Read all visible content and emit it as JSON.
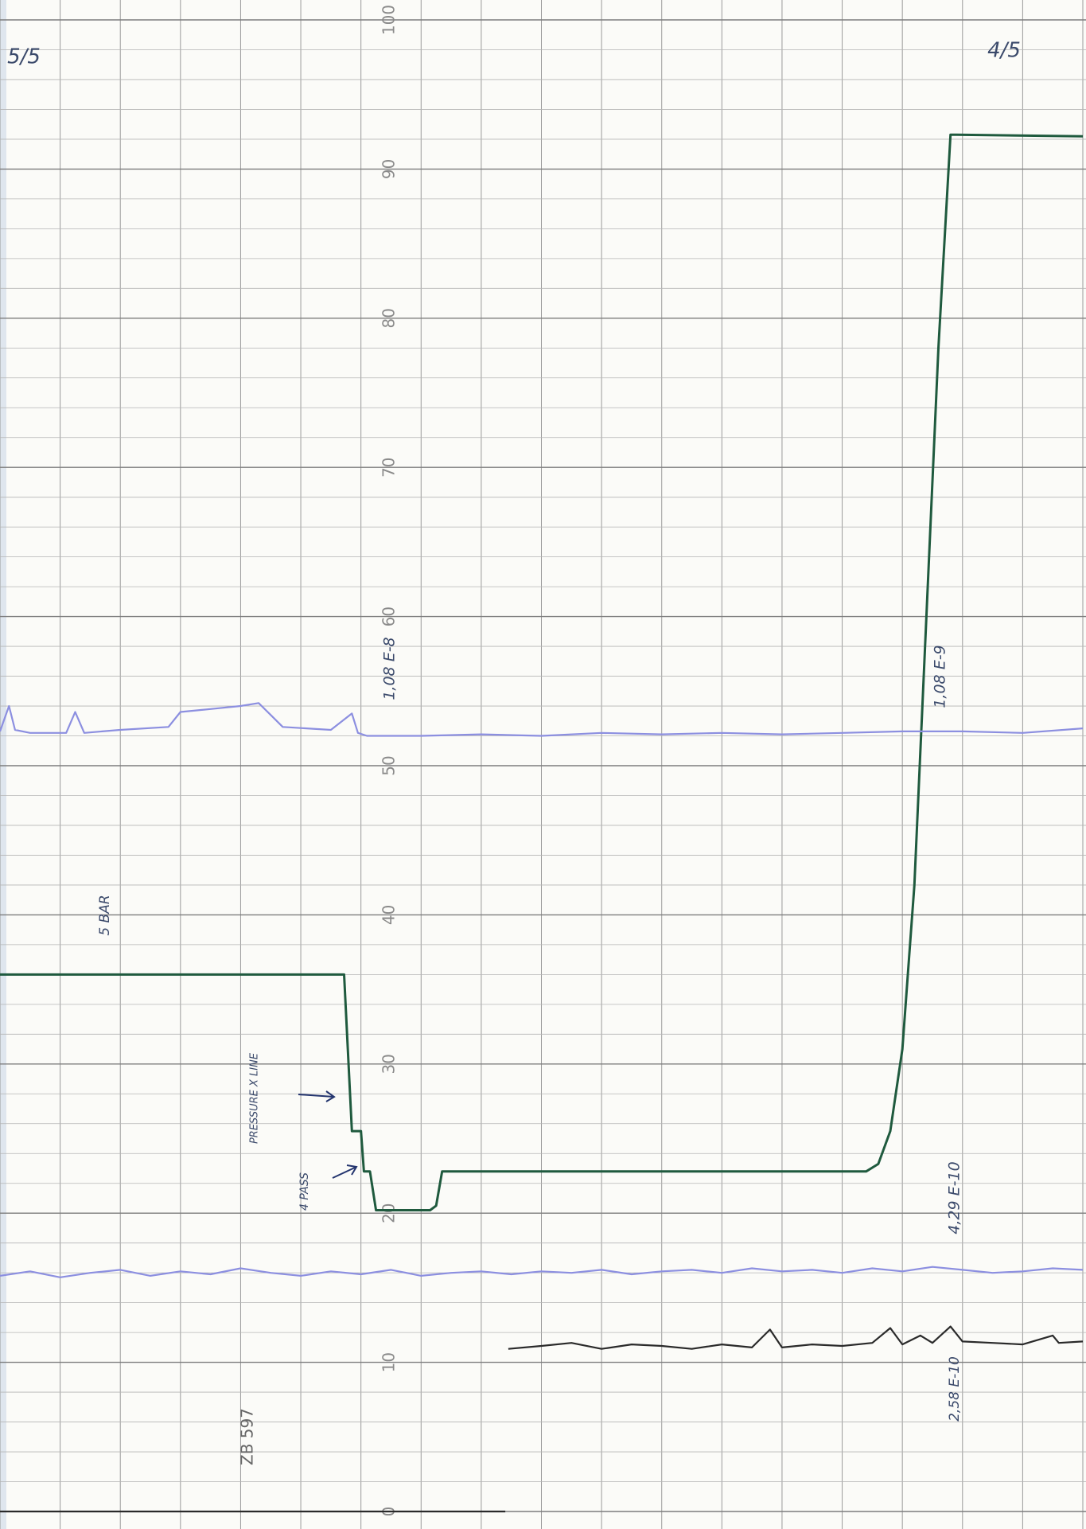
{
  "chart_data": {
    "type": "line",
    "xlim": [
      0,
      18
    ],
    "ylim": [
      0,
      100
    ],
    "yticks": [
      0,
      10,
      20,
      30,
      40,
      50,
      60,
      70,
      80,
      90,
      100
    ],
    "grid": true,
    "annotations": [
      "5/5",
      "4/5",
      "5 BAR",
      "1,08 E-8",
      "1,08 E-9",
      "PRESSURE X LINE",
      "4 PASS",
      "4,29 E-10",
      "2,58 E-10",
      "ZB 597"
    ],
    "series": [
      {
        "color": "#1f5a3e",
        "x": [
          0,
          5.72,
          5.85,
          5.88,
          6.0,
          6.05,
          6.15,
          6.25,
          7.15,
          7.25,
          7.35,
          14.4,
          14.6,
          14.8,
          15.0,
          15.2,
          15.4,
          15.6,
          15.8,
          15.9,
          18
        ],
        "values": [
          36,
          36,
          25.5,
          25.5,
          25.5,
          22.8,
          22.8,
          20.2,
          20.2,
          20.5,
          22.8,
          22.8,
          23.3,
          25.5,
          31,
          42,
          60,
          78,
          92.3,
          92.3,
          92.2
        ]
      },
      {
        "color": "#8c8fe0",
        "x": [
          0,
          0.15,
          0.25,
          0.5,
          1.1,
          1.25,
          1.4,
          2.0,
          2.8,
          3.0,
          3.5,
          4.0,
          4.3,
          4.5,
          4.7,
          5.5,
          5.85,
          5.95,
          6.1,
          7,
          8,
          9,
          10,
          11,
          12,
          13,
          14,
          15,
          16,
          17,
          18
        ],
        "values": [
          52.3,
          54,
          52.4,
          52.2,
          52.2,
          53.6,
          52.2,
          52.4,
          52.6,
          53.6,
          53.8,
          54,
          54.2,
          53.4,
          52.6,
          52.4,
          53.5,
          52.2,
          52.0,
          52.0,
          52.1,
          52.0,
          52.2,
          52.1,
          52.2,
          52.1,
          52.2,
          52.3,
          52.3,
          52.2,
          52.5
        ]
      },
      {
        "color": "#8c8fe0",
        "x": [
          0,
          0.5,
          1,
          1.5,
          2,
          2.5,
          3,
          3.5,
          4,
          4.5,
          5,
          5.5,
          6,
          6.5,
          7,
          7.5,
          8,
          8.5,
          9,
          9.5,
          10,
          10.5,
          11,
          11.5,
          12,
          12.5,
          13,
          13.5,
          14,
          14.5,
          15,
          15.5,
          16,
          16.5,
          17,
          17.5,
          18
        ],
        "values": [
          15.8,
          16.1,
          15.7,
          16.0,
          16.2,
          15.8,
          16.1,
          15.9,
          16.3,
          16.0,
          15.8,
          16.1,
          15.9,
          16.2,
          15.8,
          16.0,
          16.1,
          15.9,
          16.1,
          16.0,
          16.2,
          15.9,
          16.1,
          16.2,
          16.0,
          16.3,
          16.1,
          16.2,
          16.0,
          16.3,
          16.1,
          16.4,
          16.2,
          16.0,
          16.1,
          16.3,
          16.2
        ]
      },
      {
        "color": "#2a2a2a",
        "x": [
          0,
          8.4,
          8.42,
          8.45,
          9,
          9.5,
          10,
          10.5,
          11,
          11.5,
          12,
          12.5,
          12.8,
          13,
          13.5,
          14,
          14.5,
          14.8,
          15,
          15.3,
          15.5,
          15.8,
          16,
          16.5,
          17,
          17.5,
          17.6,
          18
        ],
        "values": [
          0,
          0,
          null,
          10.9,
          11.1,
          11.3,
          10.9,
          11.2,
          11.1,
          10.9,
          11.2,
          11.0,
          12.2,
          11.0,
          11.2,
          11.1,
          11.3,
          12.3,
          11.2,
          11.8,
          11.3,
          12.4,
          11.4,
          11.3,
          11.2,
          11.8,
          11.3,
          11.4
        ]
      }
    ]
  }
}
